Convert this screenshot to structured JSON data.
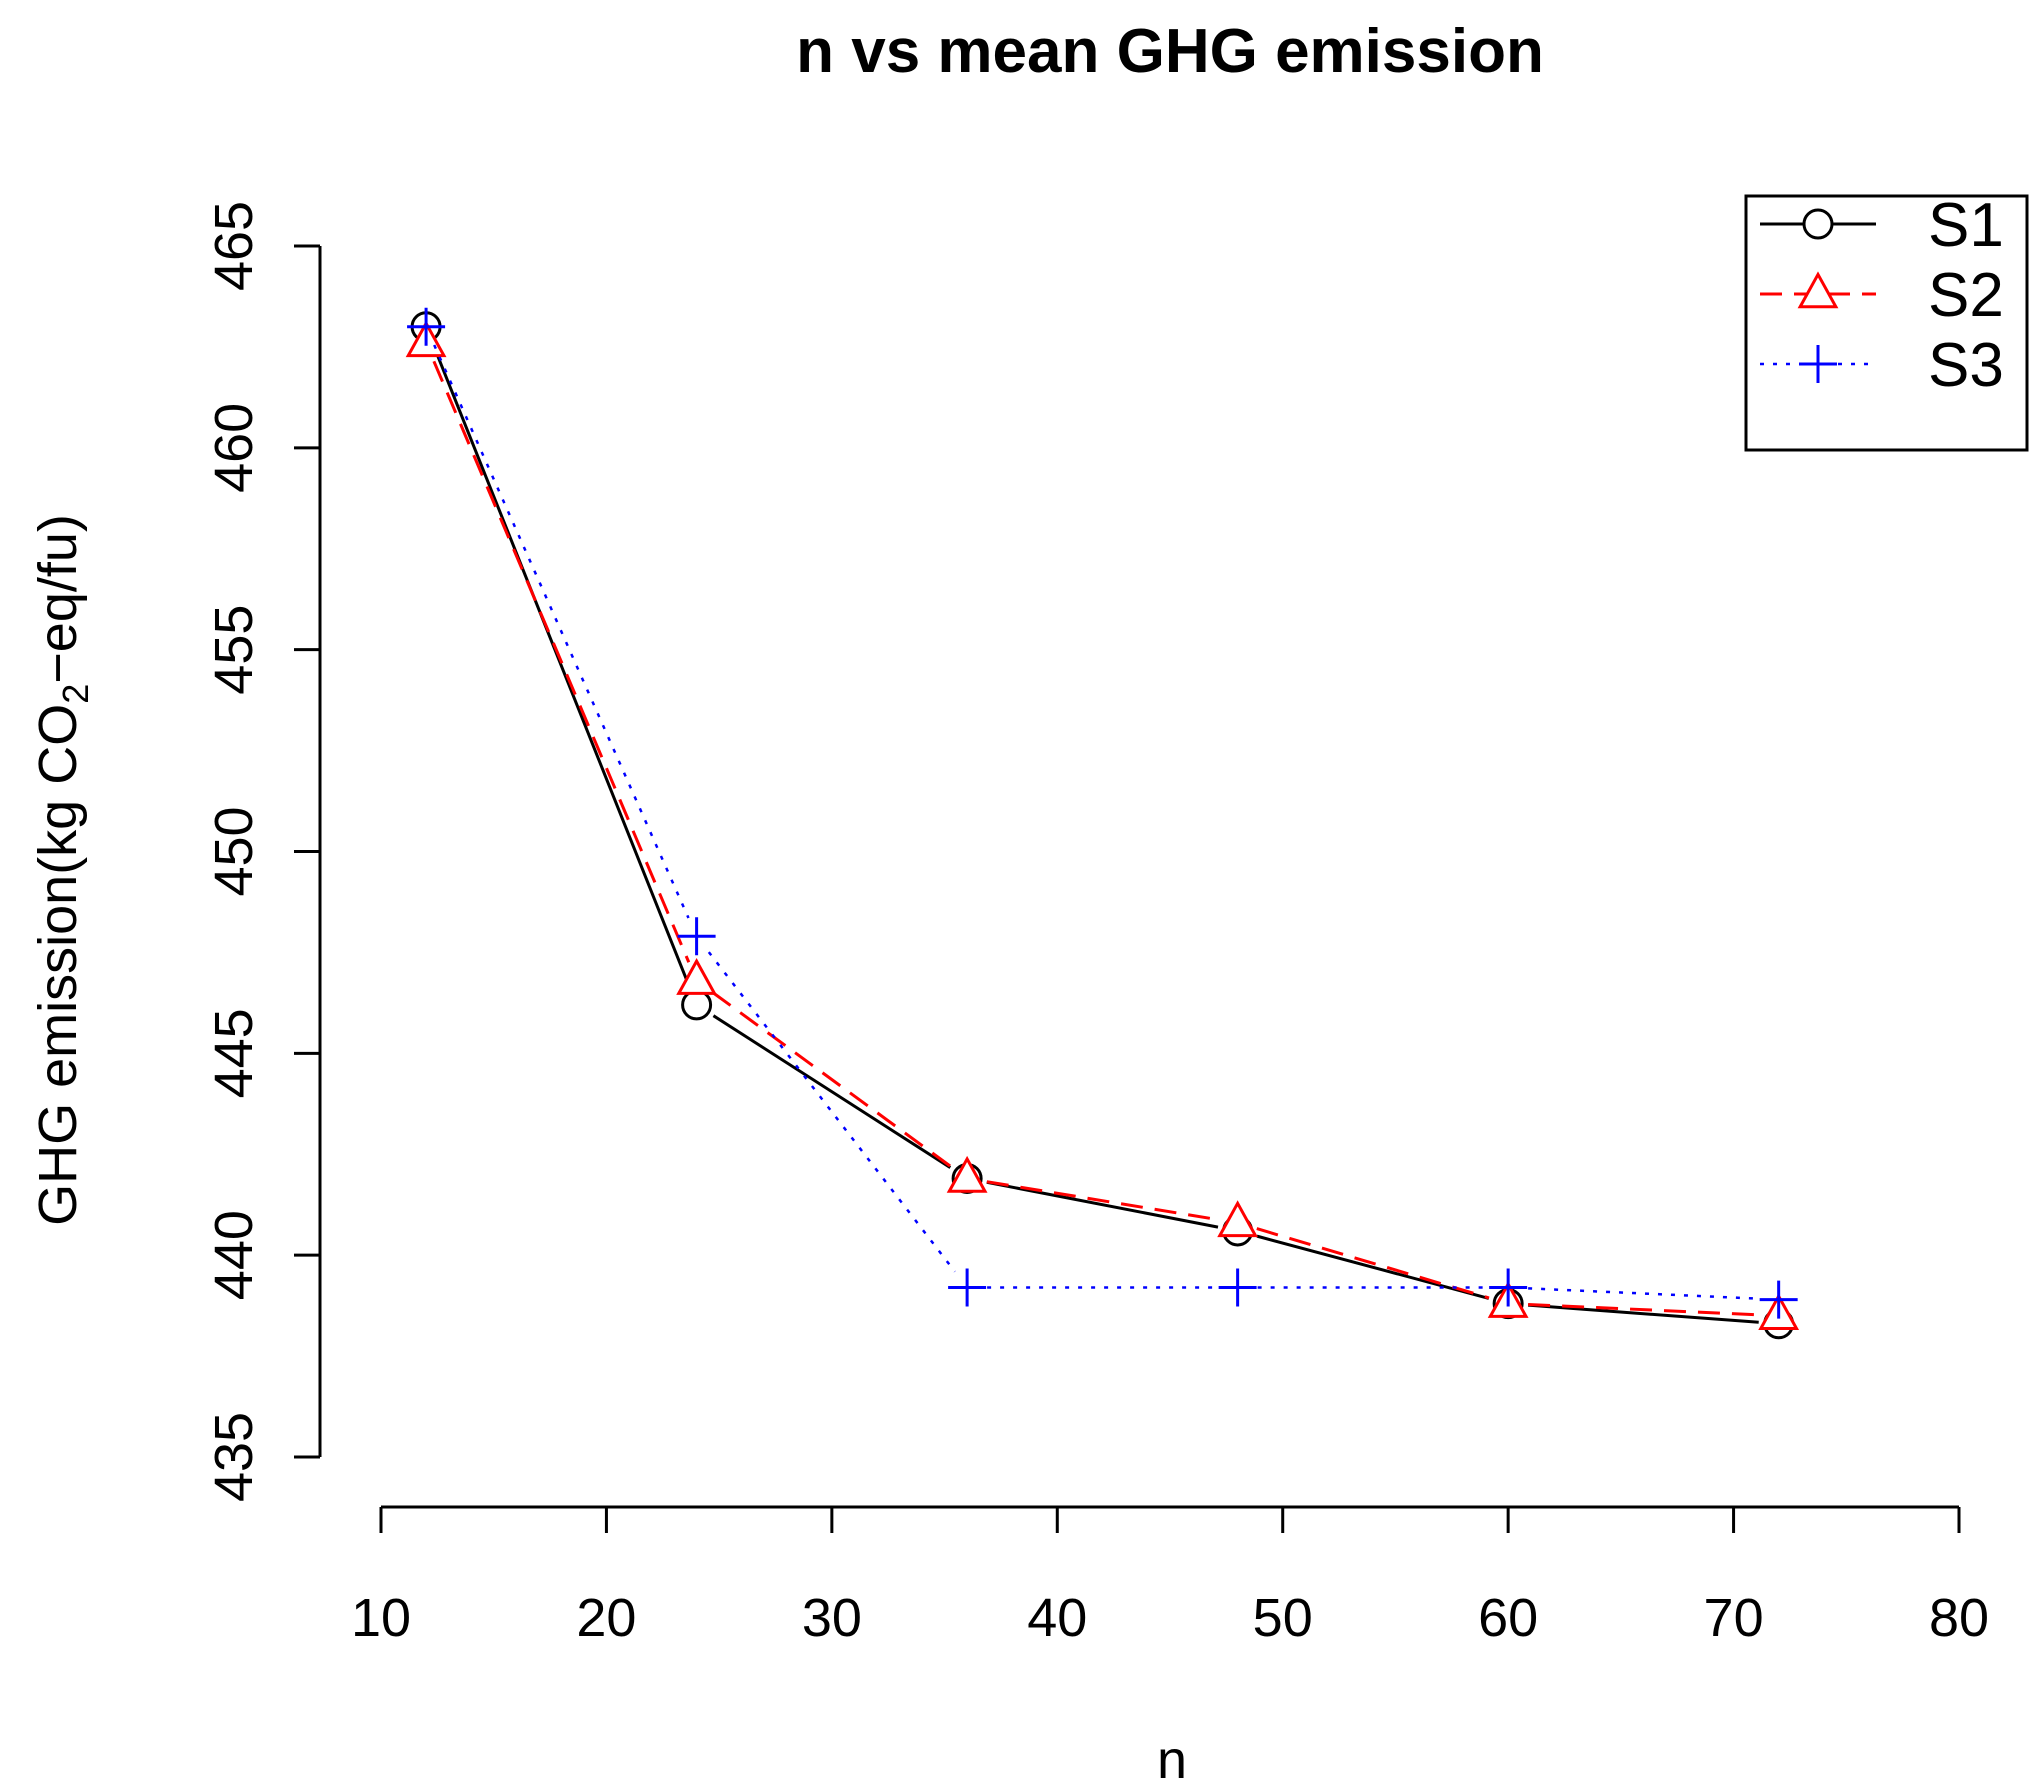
{
  "chart_data": {
    "type": "line",
    "title": "n vs mean GHG emission",
    "xlabel": "n",
    "ylabel": {
      "prefix": "GHG emission(kg CO",
      "subscript": "2",
      "suffix": "−eq/fu)"
    },
    "xlim": [
      10,
      80
    ],
    "ylim": [
      435,
      465
    ],
    "x_ticks": [
      10,
      20,
      30,
      40,
      50,
      60,
      70,
      80
    ],
    "y_ticks": [
      435,
      440,
      445,
      450,
      455,
      460,
      465
    ],
    "x": [
      12,
      24,
      36,
      48,
      60,
      72
    ],
    "series": [
      {
        "name": "S1",
        "color": "#000000",
        "marker": "circle",
        "line": "solid",
        "values": [
          463.0,
          446.2,
          441.9,
          440.6,
          438.8,
          438.3
        ]
      },
      {
        "name": "S2",
        "color": "#ff0000",
        "marker": "triangle",
        "line": "dashed",
        "values": [
          462.6,
          446.8,
          441.9,
          440.8,
          438.8,
          438.5
        ]
      },
      {
        "name": "S3",
        "color": "#0000ff",
        "marker": "plus",
        "line": "dotted",
        "values": [
          463.0,
          447.9,
          439.2,
          439.2,
          439.2,
          438.9
        ]
      }
    ],
    "legend_position": "top-right",
    "grid": false
  }
}
